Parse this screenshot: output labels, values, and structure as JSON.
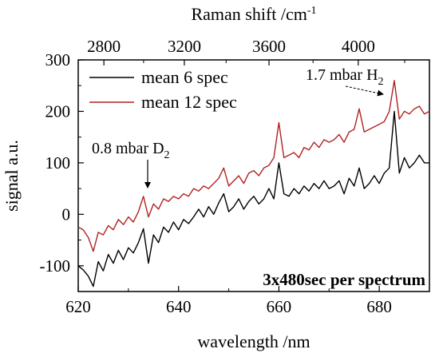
{
  "chart_data": {
    "type": "line",
    "xlabel": "wavelength /nm",
    "x2label": "Raman shift /cm",
    "x2label_sup": "-1",
    "ylabel": "signal a.u.",
    "xlim": [
      620,
      690
    ],
    "ylim": [
      -150,
      300
    ],
    "x_ticks": [
      620,
      640,
      660,
      680
    ],
    "x2_ticks": [
      2800,
      3200,
      3600,
      4000
    ],
    "y_ticks": [
      -100,
      0,
      100,
      200,
      300
    ],
    "legend": "top-left",
    "series": [
      {
        "name": "mean 6 spec",
        "color": "#000000",
        "points": [
          [
            620,
            -100
          ],
          [
            621,
            -108
          ],
          [
            622,
            -120
          ],
          [
            623,
            -140
          ],
          [
            624,
            -92
          ],
          [
            625,
            -110
          ],
          [
            626,
            -78
          ],
          [
            627,
            -95
          ],
          [
            628,
            -70
          ],
          [
            629,
            -88
          ],
          [
            630,
            -65
          ],
          [
            631,
            -75
          ],
          [
            632,
            -55
          ],
          [
            633,
            -28
          ],
          [
            634,
            -95
          ],
          [
            635,
            -40
          ],
          [
            636,
            -55
          ],
          [
            637,
            -25
          ],
          [
            638,
            -35
          ],
          [
            639,
            -15
          ],
          [
            640,
            -30
          ],
          [
            641,
            -10
          ],
          [
            642,
            -18
          ],
          [
            643,
            -5
          ],
          [
            644,
            10
          ],
          [
            645,
            -5
          ],
          [
            646,
            15
          ],
          [
            647,
            0
          ],
          [
            648,
            22
          ],
          [
            649,
            40
          ],
          [
            650,
            5
          ],
          [
            651,
            15
          ],
          [
            652,
            30
          ],
          [
            653,
            10
          ],
          [
            654,
            25
          ],
          [
            655,
            35
          ],
          [
            656,
            20
          ],
          [
            657,
            30
          ],
          [
            658,
            50
          ],
          [
            659,
            30
          ],
          [
            660,
            100
          ],
          [
            661,
            40
          ],
          [
            662,
            35
          ],
          [
            663,
            50
          ],
          [
            664,
            40
          ],
          [
            665,
            55
          ],
          [
            666,
            45
          ],
          [
            667,
            60
          ],
          [
            668,
            50
          ],
          [
            669,
            65
          ],
          [
            670,
            50
          ],
          [
            671,
            55
          ],
          [
            672,
            65
          ],
          [
            673,
            40
          ],
          [
            674,
            70
          ],
          [
            675,
            55
          ],
          [
            676,
            90
          ],
          [
            677,
            50
          ],
          [
            678,
            60
          ],
          [
            679,
            75
          ],
          [
            680,
            60
          ],
          [
            681,
            80
          ],
          [
            682,
            90
          ],
          [
            683,
            200
          ],
          [
            684,
            80
          ],
          [
            685,
            110
          ],
          [
            686,
            90
          ],
          [
            687,
            100
          ],
          [
            688,
            115
          ],
          [
            689,
            100
          ],
          [
            690,
            100
          ]
        ]
      },
      {
        "name": "mean 12 spec",
        "color": "#b22222",
        "points": [
          [
            620,
            -25
          ],
          [
            621,
            -30
          ],
          [
            622,
            -45
          ],
          [
            623,
            -72
          ],
          [
            624,
            -35
          ],
          [
            625,
            -40
          ],
          [
            626,
            -22
          ],
          [
            627,
            -30
          ],
          [
            628,
            -10
          ],
          [
            629,
            -20
          ],
          [
            630,
            -5
          ],
          [
            631,
            -15
          ],
          [
            632,
            5
          ],
          [
            633,
            35
          ],
          [
            634,
            -5
          ],
          [
            635,
            20
          ],
          [
            636,
            10
          ],
          [
            637,
            30
          ],
          [
            638,
            25
          ],
          [
            639,
            35
          ],
          [
            640,
            30
          ],
          [
            641,
            40
          ],
          [
            642,
            35
          ],
          [
            643,
            50
          ],
          [
            644,
            45
          ],
          [
            645,
            55
          ],
          [
            646,
            50
          ],
          [
            647,
            60
          ],
          [
            648,
            70
          ],
          [
            649,
            90
          ],
          [
            650,
            55
          ],
          [
            651,
            65
          ],
          [
            652,
            75
          ],
          [
            653,
            60
          ],
          [
            654,
            80
          ],
          [
            655,
            85
          ],
          [
            656,
            75
          ],
          [
            657,
            90
          ],
          [
            658,
            95
          ],
          [
            659,
            110
          ],
          [
            660,
            178
          ],
          [
            661,
            110
          ],
          [
            662,
            115
          ],
          [
            663,
            120
          ],
          [
            664,
            110
          ],
          [
            665,
            130
          ],
          [
            666,
            125
          ],
          [
            667,
            140
          ],
          [
            668,
            130
          ],
          [
            669,
            145
          ],
          [
            670,
            140
          ],
          [
            671,
            145
          ],
          [
            672,
            155
          ],
          [
            673,
            140
          ],
          [
            674,
            160
          ],
          [
            675,
            165
          ],
          [
            676,
            205
          ],
          [
            677,
            160
          ],
          [
            678,
            165
          ],
          [
            679,
            170
          ],
          [
            680,
            175
          ],
          [
            681,
            180
          ],
          [
            682,
            200
          ],
          [
            683,
            260
          ],
          [
            684,
            185
          ],
          [
            685,
            200
          ],
          [
            686,
            195
          ],
          [
            687,
            205
          ],
          [
            688,
            210
          ],
          [
            689,
            195
          ],
          [
            690,
            200
          ]
        ]
      }
    ],
    "annotations": [
      {
        "text": "0.8 mbar D",
        "sub": "2",
        "x": 633,
        "y": 35
      },
      {
        "text": "1.7 mbar H",
        "sub": "2",
        "x": 683,
        "y": 260
      }
    ],
    "note": "3x480sec per spectrum"
  }
}
